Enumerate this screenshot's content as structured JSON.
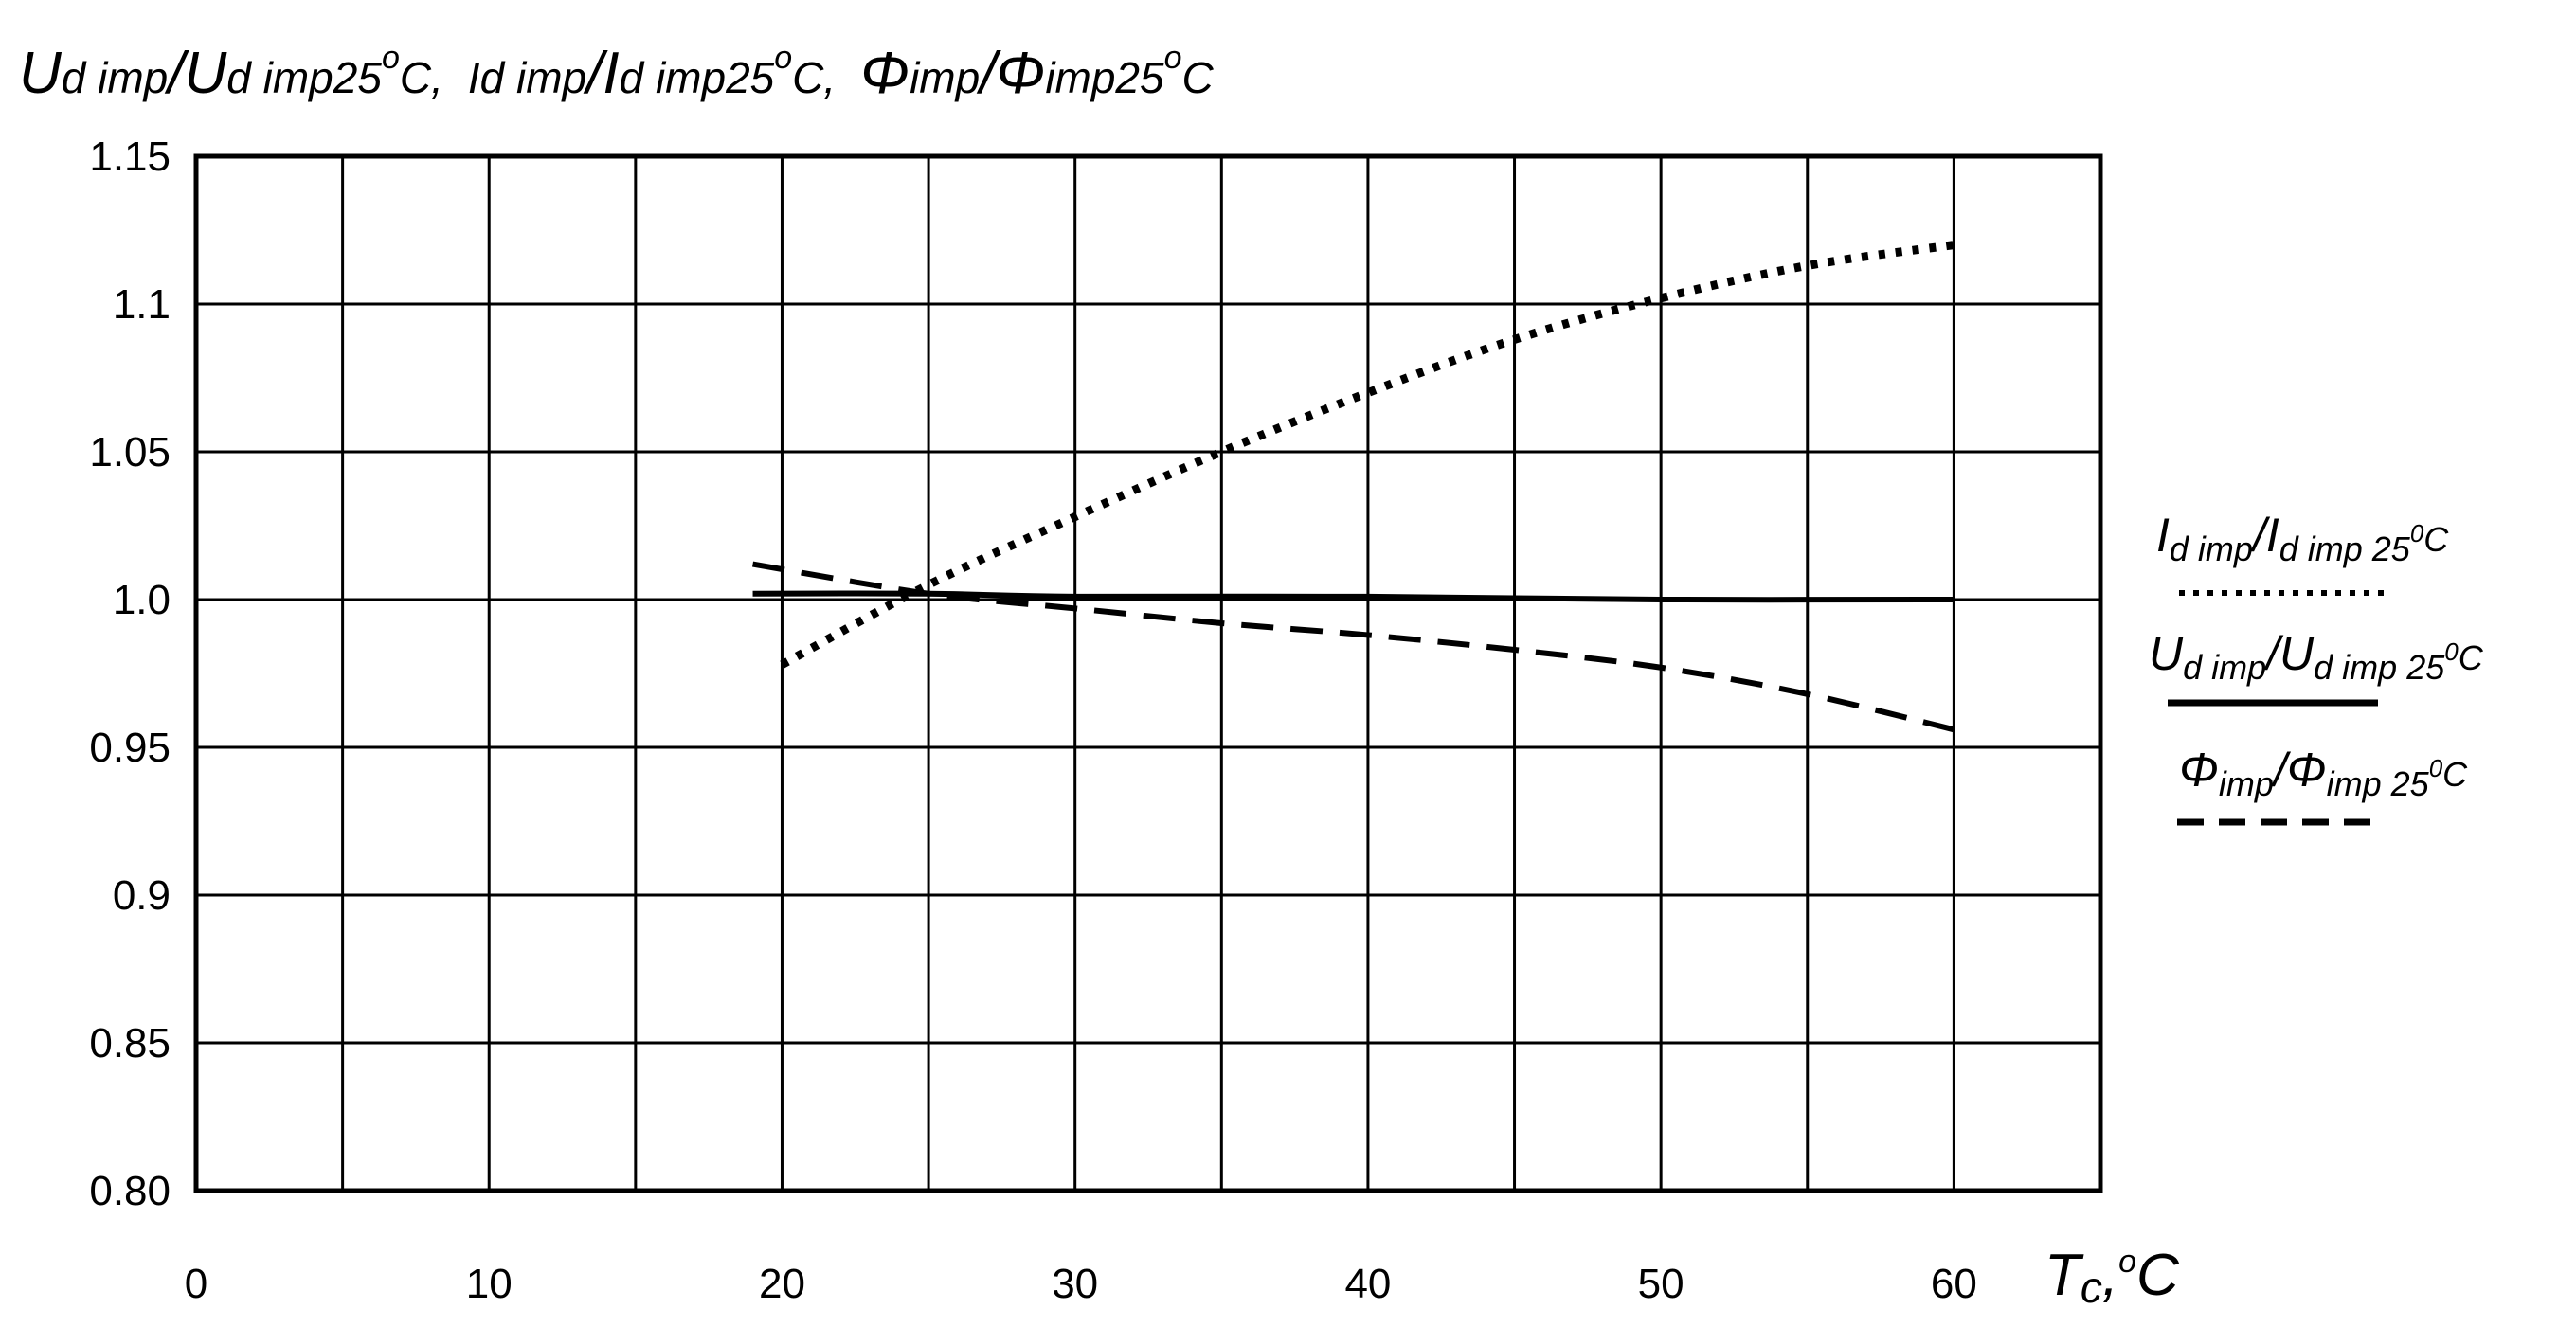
{
  "chart_data": {
    "type": "line",
    "title": {
      "s1": {
        "main1": "U",
        "sub1": "d imp",
        "slash": "/",
        "main2": "U",
        "sub2": "d imp25",
        "sup": "o",
        "tail": "C,"
      },
      "s2": {
        "main1": "I",
        "sub1": "d imp",
        "slash": "/",
        "main2": "I",
        "sub2": "d imp25",
        "sup": "o",
        "tail": "C,"
      },
      "s3": {
        "main1": "Φ",
        "sub1": "imp",
        "slash": "/",
        "main2": "Φ",
        "sub2": "imp25",
        "sup": "o",
        "tail": "C"
      }
    },
    "xlabel": {
      "main": "T",
      "sub": "c",
      "comma": ",",
      "sup": "o",
      "unit": "C"
    },
    "xlim": [
      0,
      65
    ],
    "ylim": [
      0.8,
      1.15
    ],
    "x_ticks": [
      0,
      10,
      20,
      30,
      40,
      50,
      60
    ],
    "x_tick_labels": [
      "0",
      "10",
      "20",
      "30",
      "40",
      "50",
      "60"
    ],
    "x_grid": [
      0,
      5,
      10,
      15,
      20,
      25,
      30,
      35,
      40,
      45,
      50,
      55,
      60,
      65
    ],
    "y_ticks": [
      0.8,
      0.85,
      0.9,
      0.95,
      1.0,
      1.05,
      1.1,
      1.15
    ],
    "y_tick_labels": [
      "0.80",
      "0.85",
      "0.9",
      "0.95",
      "1.0",
      "1.05",
      "1.1",
      "1.15"
    ],
    "grid": true,
    "legend_position": "right",
    "series": [
      {
        "name": "I_d_imp / I_d_imp_25C",
        "style": "dotted",
        "label": {
          "main1": "I",
          "sub1": "d imp",
          "slash": "/",
          "main2": "I",
          "sub2": "d imp 25",
          "sup": "0",
          "tail": "C"
        },
        "x": [
          20,
          25,
          30,
          35,
          40,
          45,
          50,
          55,
          60
        ],
        "y": [
          0.978,
          1.005,
          1.028,
          1.05,
          1.07,
          1.088,
          1.102,
          1.113,
          1.12
        ]
      },
      {
        "name": "U_d_imp / U_d_imp_25C",
        "style": "solid",
        "label": {
          "main1": "U",
          "sub1": "d imp",
          "slash": "/",
          "main2": "U",
          "sub2": "d imp 25",
          "sup": "0",
          "tail": "C"
        },
        "x": [
          19,
          25,
          30,
          40,
          50,
          60
        ],
        "y": [
          1.002,
          1.002,
          1.001,
          1.001,
          1.0,
          1.0
        ]
      },
      {
        "name": "Phi_imp / Phi_imp_25C",
        "style": "dashed",
        "label": {
          "main1": "Φ",
          "sub1": "imp",
          "slash": "/",
          "main2": "Φ",
          "sub2": "imp 25",
          "sup": "0",
          "tail": "C"
        },
        "x": [
          19,
          25,
          30,
          35,
          40,
          45,
          50,
          55,
          60
        ],
        "y": [
          1.012,
          1.002,
          0.997,
          0.992,
          0.988,
          0.983,
          0.977,
          0.968,
          0.956
        ]
      }
    ]
  }
}
